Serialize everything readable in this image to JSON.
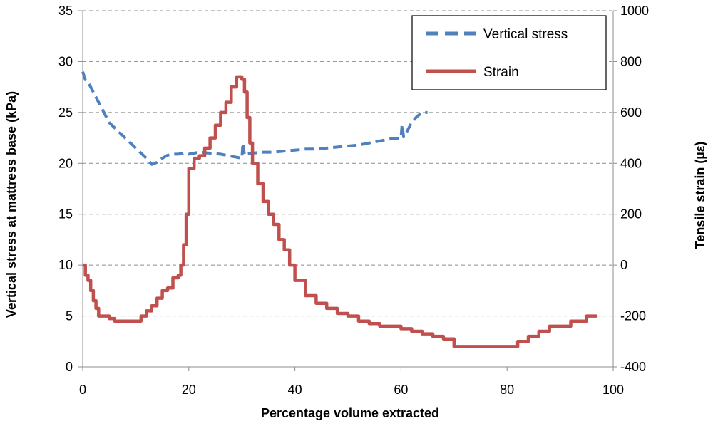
{
  "chart_data": {
    "type": "line",
    "xlabel": "Percentage volume extracted",
    "ylabel": "Vertical stress at mattress base (kPa)",
    "y2label": "Tensile strain (µε)",
    "xlim": [
      0,
      100
    ],
    "ylim": [
      0,
      35
    ],
    "y2lim": [
      -400,
      1000
    ],
    "xticks": [
      "0",
      "20",
      "40",
      "60",
      "80",
      "100"
    ],
    "yticks": [
      "0",
      "5",
      "10",
      "15",
      "20",
      "25",
      "30",
      "35"
    ],
    "y2ticks": [
      "-400",
      "-200",
      "0",
      "200",
      "400",
      "600",
      "800",
      "1000"
    ],
    "grid": "horizontal dashed",
    "legend_position": "top-right",
    "series": [
      {
        "name": "Vertical stress",
        "axis": "left",
        "color": "#4F81BD",
        "dash": "dashed",
        "x": [
          0,
          0.5,
          1,
          2,
          3,
          4,
          5,
          6,
          7,
          8,
          9,
          10,
          11,
          12,
          13,
          14,
          15,
          16,
          17,
          18,
          19,
          20,
          22,
          24,
          26,
          28,
          29,
          30,
          30.2,
          30.5,
          31,
          32,
          34,
          36,
          38,
          40,
          42,
          44,
          46,
          48,
          50,
          52,
          54,
          56,
          58,
          60,
          60.2,
          60.5,
          61,
          62,
          63,
          64,
          65
        ],
        "y": [
          29,
          28.2,
          28,
          27,
          26,
          25,
          24,
          23.5,
          23,
          22.5,
          22,
          21.5,
          21,
          20.5,
          19.9,
          20.1,
          20.5,
          20.8,
          20.9,
          20.9,
          21,
          20.9,
          21.1,
          21,
          20.9,
          20.7,
          20.6,
          20.5,
          22,
          20.8,
          20.9,
          21,
          21.1,
          21.1,
          21.2,
          21.3,
          21.4,
          21.4,
          21.5,
          21.6,
          21.7,
          21.8,
          22,
          22.2,
          22.4,
          22.5,
          23.8,
          22.6,
          23,
          24,
          24.6,
          25,
          25
        ]
      },
      {
        "name": "Strain",
        "axis": "right",
        "color": "#C0504D",
        "dash": "solid",
        "x": [
          0,
          0.5,
          1,
          1.5,
          2,
          2.5,
          3,
          4,
          5,
          6,
          7,
          8,
          9,
          10,
          10.5,
          11,
          12,
          13,
          14,
          15,
          16,
          17,
          18,
          18.5,
          19,
          19.5,
          20,
          21,
          22,
          23,
          24,
          25,
          26,
          27,
          28,
          29,
          29.5,
          30,
          30.5,
          31,
          31.5,
          32,
          33,
          34,
          35,
          36,
          37,
          38,
          39,
          40,
          42,
          44,
          46,
          48,
          50,
          52,
          54,
          56,
          58,
          60,
          62,
          64,
          66,
          68,
          70,
          72,
          74,
          76,
          78,
          80,
          82,
          84,
          86,
          88,
          90,
          92,
          94,
          95,
          96,
          97
        ],
        "y": [
          0,
          -40,
          -60,
          -100,
          -140,
          -170,
          -200,
          -200,
          -210,
          -220,
          -220,
          -220,
          -220,
          -220,
          -220,
          -200,
          -180,
          -160,
          -130,
          -100,
          -90,
          -50,
          -40,
          0,
          80,
          200,
          380,
          420,
          430,
          460,
          500,
          550,
          600,
          640,
          700,
          740,
          740,
          730,
          680,
          580,
          480,
          400,
          320,
          250,
          200,
          160,
          100,
          60,
          0,
          -60,
          -120,
          -150,
          -170,
          -190,
          -200,
          -220,
          -230,
          -240,
          -240,
          -250,
          -260,
          -270,
          -280,
          -290,
          -320,
          -320,
          -320,
          -320,
          -320,
          -320,
          -300,
          -280,
          -260,
          -240,
          -240,
          -220,
          -220,
          -200,
          -200,
          -200
        ]
      }
    ]
  }
}
